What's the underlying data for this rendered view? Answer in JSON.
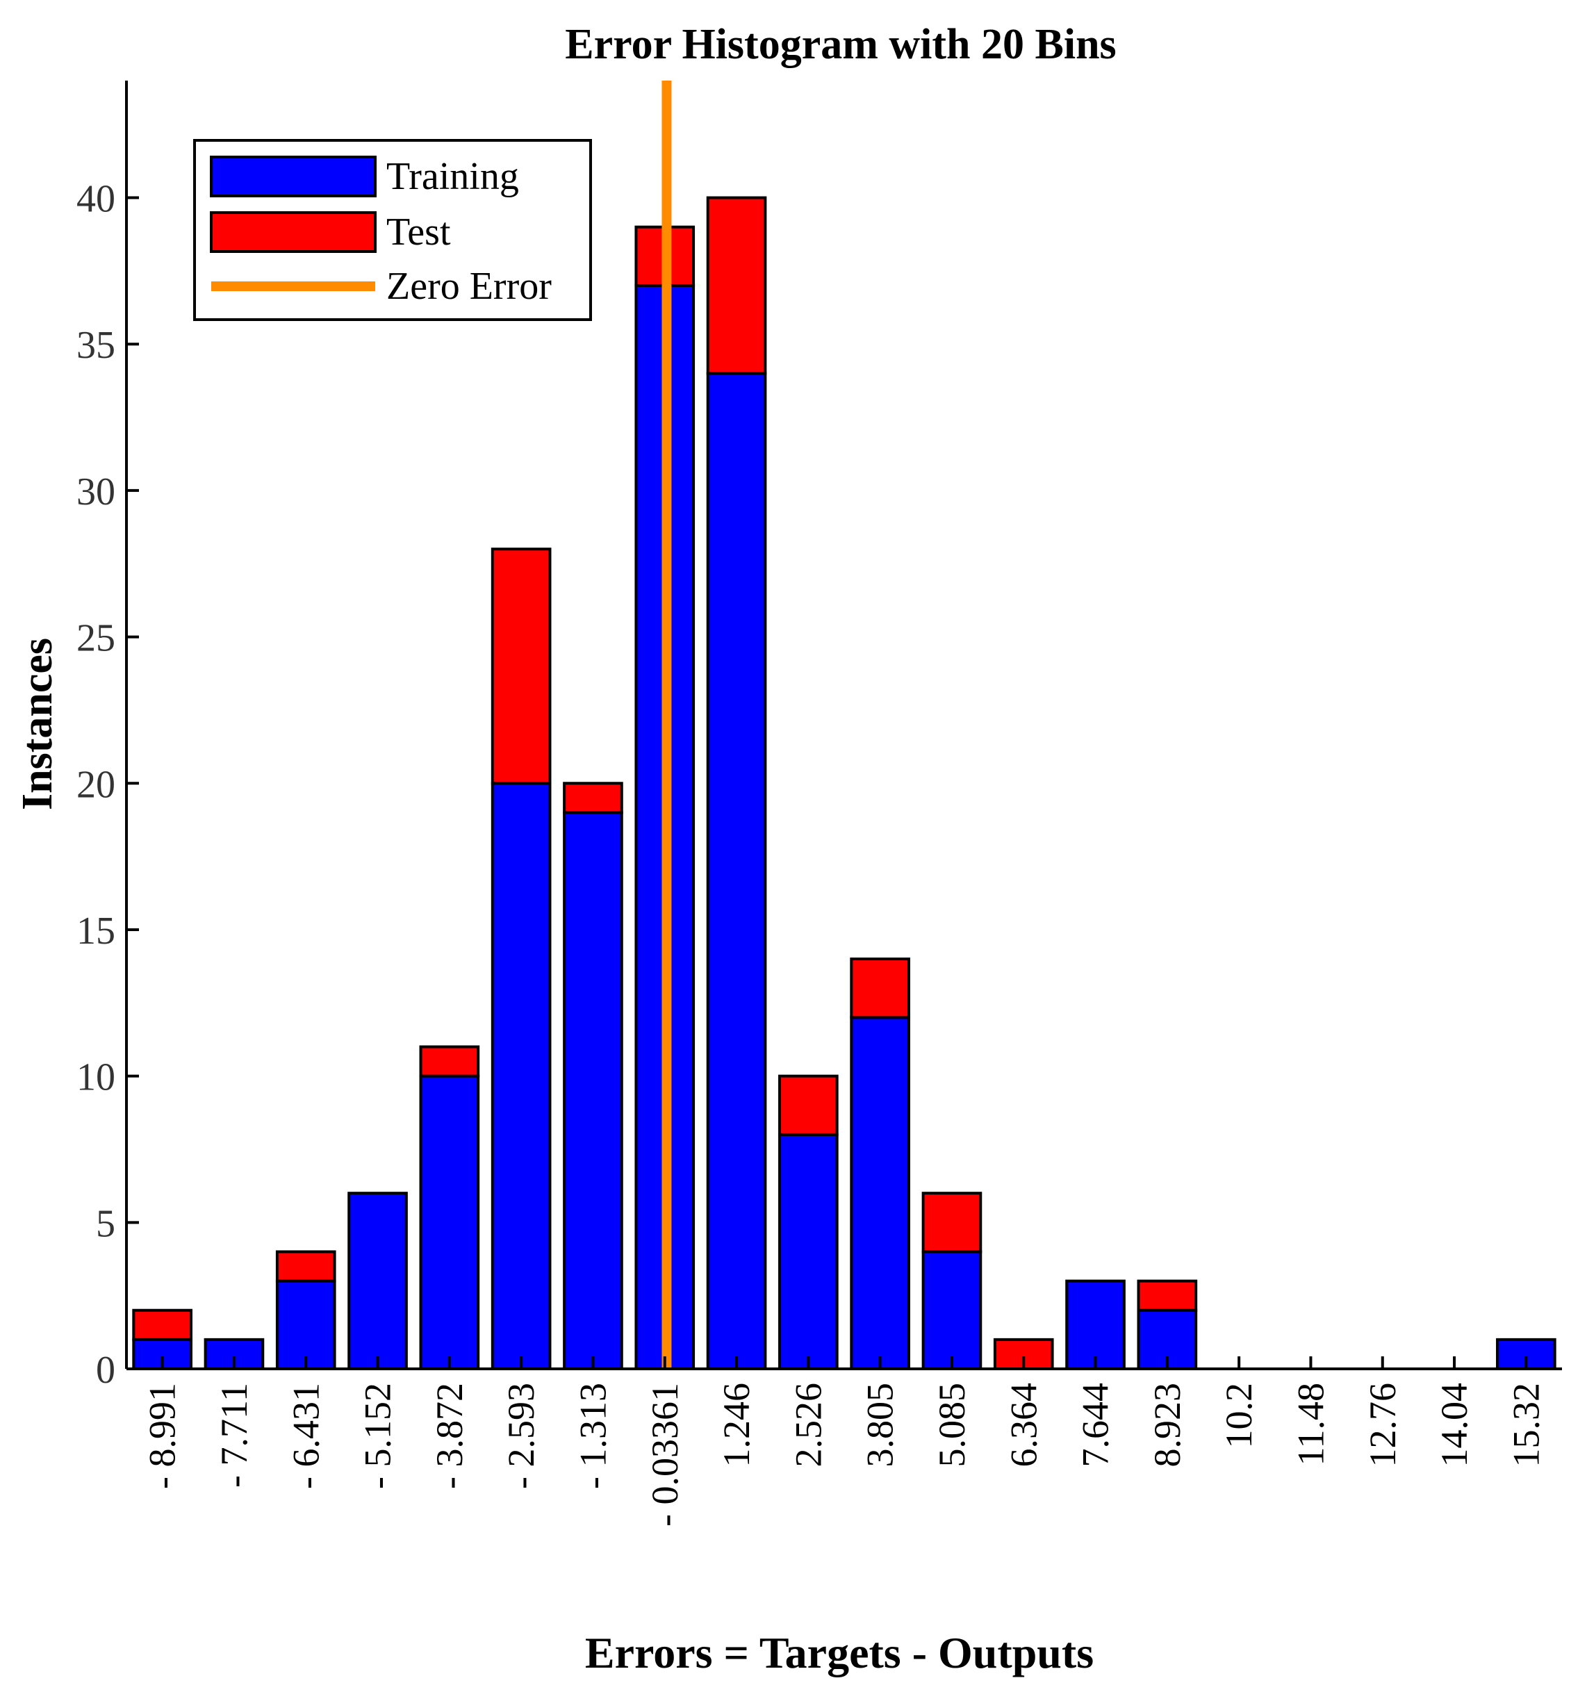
{
  "chart_data": {
    "type": "bar",
    "stacked": true,
    "title": "Error Histogram with 20 Bins",
    "xlabel": "Errors = Targets - Outputs",
    "ylabel": "Instances",
    "categories": [
      "- 8.991",
      "- 7.711",
      "- 6.431",
      "- 5.152",
      "- 3.872",
      "- 2.593",
      "- 1.313",
      "- 0.03361",
      "1.246",
      "2.526",
      "3.805",
      "5.085",
      "6.364",
      "7.644",
      "8.923",
      "10.2",
      "11.48",
      "12.76",
      "14.04",
      "15.32"
    ],
    "series": [
      {
        "name": "Training",
        "color": "#0000ff",
        "values": [
          1,
          1,
          3,
          6,
          10,
          20,
          19,
          37,
          34,
          8,
          12,
          4,
          0,
          3,
          2,
          0,
          0,
          0,
          0,
          1
        ]
      },
      {
        "name": "Test",
        "color": "#ff0000",
        "values": [
          1,
          0,
          1,
          0,
          1,
          8,
          1,
          2,
          6,
          2,
          2,
          2,
          1,
          0,
          1,
          0,
          0,
          0,
          0,
          0
        ]
      }
    ],
    "reference_line": {
      "name": "Zero Error",
      "x": 0,
      "color": "#ff8c00"
    },
    "ylim": [
      0,
      44
    ],
    "yticks": [
      0,
      5,
      10,
      15,
      20,
      25,
      30,
      35,
      40
    ],
    "grid": false,
    "legend": {
      "position": "top-left",
      "entries": [
        "Training",
        "Test",
        "Zero Error"
      ]
    }
  }
}
